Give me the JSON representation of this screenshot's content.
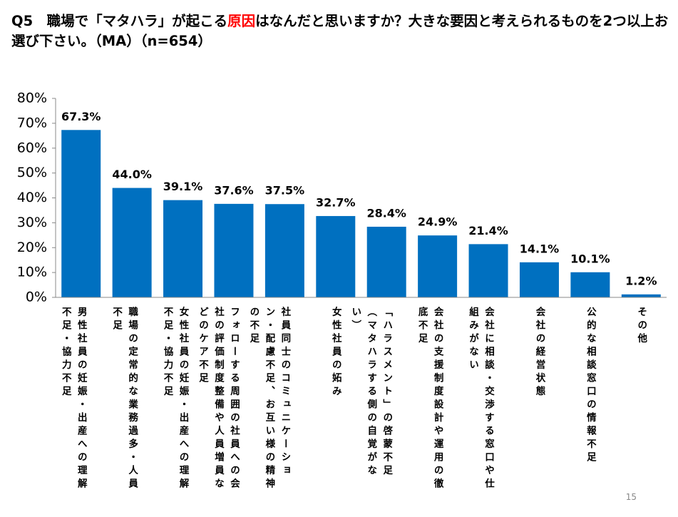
{
  "chart_data": {
    "type": "bar",
    "title_segments": [
      {
        "text": "Q5　職場で「マタハラ」が起こる",
        "color": "#000000"
      },
      {
        "text": "原因",
        "color": "#ff0000"
      },
      {
        "text": "はなんだと思いますか？大きな要因と考えられるものを2つ以上お選び下さい。（MA）（n=654）",
        "color": "#000000"
      }
    ],
    "categories": [
      "男性社員の妊娠・出産への理解不足・協力不足",
      "職場の定常的な業務過多・人員不足",
      "女性社員の妊娠・出産への理解不足・協力不足",
      "フォローする周囲の社員への会社の評価制度整備や人員増員などのケア不足",
      "社員同士のコミュニケーション・配慮不足、お互い様の精神の不足",
      "女性社員の妬み",
      "「ハラスメント」の啓蒙不足　（マタハラする側の自覚がない）",
      "会社の支援制度設計や運用の徹底不足",
      "会社に相談・交渉する窓口や仕組みがない",
      "会社の経営状態",
      "公的な相談窓口の情報不足",
      "その他"
    ],
    "values": [
      67.3,
      44.0,
      39.1,
      37.6,
      37.5,
      32.7,
      28.4,
      24.9,
      21.4,
      14.1,
      10.1,
      1.2
    ],
    "value_labels": [
      "67.3%",
      "44.0%",
      "39.1%",
      "37.6%",
      "37.5%",
      "32.7%",
      "28.4%",
      "24.9%",
      "21.4%",
      "14.1%",
      "10.1%",
      "1.2%"
    ],
    "color": "#0070c0",
    "ylim": [
      0,
      80
    ],
    "yticks": [
      {
        "value": 0,
        "label": "0%"
      },
      {
        "value": 10,
        "label": "10%"
      },
      {
        "value": 20,
        "label": "20%"
      },
      {
        "value": 30,
        "label": "30%"
      },
      {
        "value": 40,
        "label": "40%"
      },
      {
        "value": 50,
        "label": "50%"
      },
      {
        "value": 60,
        "label": "60%"
      },
      {
        "value": 70,
        "label": "70%"
      },
      {
        "value": 80,
        "label": "80%"
      }
    ],
    "grid": false,
    "page_number": "15"
  }
}
